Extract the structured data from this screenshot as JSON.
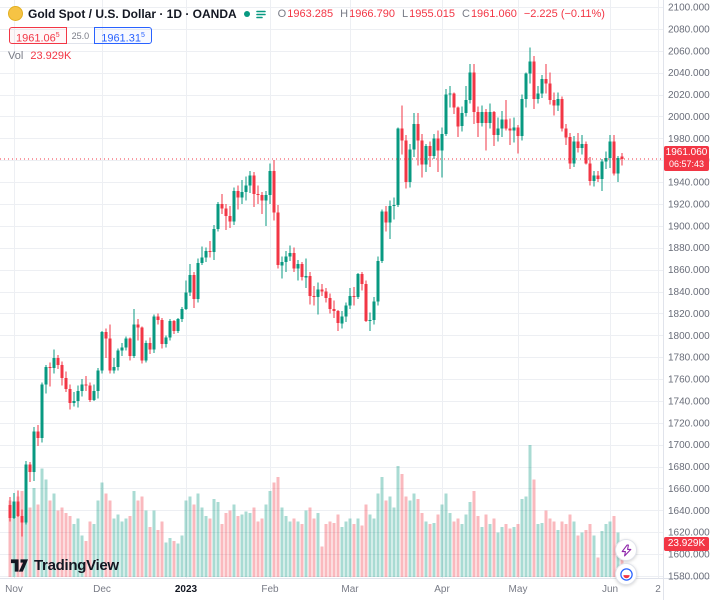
{
  "legend": {
    "title": "Gold Spot / U.S. Dollar · 1D · OANDA",
    "ohlc": [
      {
        "label": "O",
        "value": "1963.285"
      },
      {
        "label": "H",
        "value": "1966.790"
      },
      {
        "label": "L",
        "value": "1955.015"
      },
      {
        "label": "C",
        "value": "1961.060"
      }
    ],
    "change": "−2.225 (−0.11%)"
  },
  "quote_panel": {
    "bid": "1961.06",
    "bid_sup": "5",
    "spread": "25.0",
    "ask": "1961.31",
    "ask_sup": "5"
  },
  "volume_row": {
    "label": "Vol",
    "value": "23.929K"
  },
  "price_chip": {
    "price": "1961.060",
    "countdown": "06:57:43"
  },
  "volume_chip": {
    "value": "23.929K"
  },
  "logo": {
    "text": "TradingView"
  },
  "colors": {
    "accent_red": "#F23645",
    "accent_blue": "#2962FF",
    "accent_green": "#089981"
  },
  "chart_data": {
    "type": "candlestick+volume",
    "title": "Gold Spot / U.S. Dollar",
    "interval": "1D",
    "exchange": "OANDA",
    "last_price": 1961.06,
    "volume_unit": "K",
    "y_axis": {
      "min": 1580,
      "max": 2100,
      "step": 20,
      "decimals": 3
    },
    "x_ticks": [
      {
        "i": 1,
        "label": "Nov"
      },
      {
        "i": 23,
        "label": "Dec"
      },
      {
        "i": 44,
        "label": "2023",
        "year": true
      },
      {
        "i": 65,
        "label": "Feb"
      },
      {
        "i": 85,
        "label": "Mar"
      },
      {
        "i": 108,
        "label": "Apr"
      },
      {
        "i": 127,
        "label": "May"
      },
      {
        "i": 150,
        "label": "Jun"
      },
      {
        "i": 162,
        "label": "2"
      }
    ],
    "colors": {
      "up": "#089981",
      "down": "#F23645",
      "vol_up": "rgba(8,153,129,0.35)",
      "vol_down": "rgba(242,54,69,0.35)",
      "grid": "#EDEFF3",
      "last_price_line": "#F23645",
      "axis_border": "#E0E3EB"
    },
    "candles": [
      [
        1645,
        1652,
        1630,
        1633,
        55
      ],
      [
        1633,
        1656,
        1632,
        1648,
        48
      ],
      [
        1648,
        1658,
        1634,
        1635,
        58
      ],
      [
        1635,
        1641,
        1616,
        1629,
        62
      ],
      [
        1629,
        1685,
        1627,
        1682,
        75
      ],
      [
        1682,
        1684,
        1666,
        1675,
        50
      ],
      [
        1675,
        1716,
        1667,
        1712,
        64
      ],
      [
        1712,
        1718,
        1699,
        1706,
        52
      ],
      [
        1706,
        1757,
        1702,
        1755,
        78
      ],
      [
        1755,
        1773,
        1747,
        1771,
        70
      ],
      [
        1771,
        1775,
        1753,
        1770,
        55
      ],
      [
        1770,
        1787,
        1765,
        1779,
        60
      ],
      [
        1779,
        1782,
        1769,
        1773,
        48
      ],
      [
        1773,
        1776,
        1754,
        1761,
        50
      ],
      [
        1761,
        1767,
        1748,
        1751,
        46
      ],
      [
        1751,
        1755,
        1732,
        1738,
        44
      ],
      [
        1738,
        1748,
        1735,
        1740,
        38
      ],
      [
        1740,
        1754,
        1734,
        1749,
        42
      ],
      [
        1749,
        1760,
        1744,
        1755,
        30
      ],
      [
        1755,
        1763,
        1749,
        1754,
        26
      ],
      [
        1754,
        1757,
        1739,
        1741,
        40
      ],
      [
        1741,
        1755,
        1740,
        1749,
        38
      ],
      [
        1749,
        1770,
        1742,
        1768,
        55
      ],
      [
        1768,
        1804,
        1765,
        1803,
        68
      ],
      [
        1803,
        1806,
        1779,
        1797,
        60
      ],
      [
        1797,
        1810,
        1765,
        1768,
        55
      ],
      [
        1768,
        1779,
        1765,
        1771,
        42
      ],
      [
        1771,
        1788,
        1768,
        1786,
        45
      ],
      [
        1786,
        1793,
        1781,
        1789,
        40
      ],
      [
        1789,
        1799,
        1786,
        1797,
        42
      ],
      [
        1797,
        1798,
        1777,
        1781,
        44
      ],
      [
        1781,
        1824,
        1779,
        1810,
        62
      ],
      [
        1810,
        1815,
        1795,
        1807,
        55
      ],
      [
        1807,
        1808,
        1774,
        1777,
        58
      ],
      [
        1777,
        1795,
        1775,
        1793,
        48
      ],
      [
        1793,
        1798,
        1783,
        1787,
        36
      ],
      [
        1787,
        1819,
        1784,
        1817,
        48
      ],
      [
        1817,
        1820,
        1810,
        1814,
        34
      ],
      [
        1814,
        1816,
        1788,
        1792,
        40
      ],
      [
        1792,
        1800,
        1789,
        1798,
        25
      ],
      [
        1798,
        1815,
        1795,
        1813,
        28
      ],
      [
        1813,
        1814,
        1801,
        1804,
        26
      ],
      [
        1804,
        1816,
        1802,
        1815,
        24
      ],
      [
        1815,
        1826,
        1812,
        1824,
        30
      ],
      [
        1824,
        1850,
        1823,
        1839,
        55
      ],
      [
        1839,
        1865,
        1836,
        1855,
        58
      ],
      [
        1855,
        1858,
        1825,
        1833,
        52
      ],
      [
        1833,
        1870,
        1830,
        1866,
        60
      ],
      [
        1866,
        1881,
        1864,
        1871,
        50
      ],
      [
        1871,
        1880,
        1867,
        1877,
        44
      ],
      [
        1877,
        1886,
        1871,
        1876,
        42
      ],
      [
        1876,
        1901,
        1869,
        1897,
        56
      ],
      [
        1897,
        1922,
        1895,
        1920,
        54
      ],
      [
        1920,
        1929,
        1911,
        1916,
        38
      ],
      [
        1916,
        1920,
        1896,
        1909,
        46
      ],
      [
        1909,
        1918,
        1898,
        1904,
        48
      ],
      [
        1904,
        1935,
        1901,
        1932,
        52
      ],
      [
        1932,
        1937,
        1915,
        1926,
        44
      ],
      [
        1926,
        1942,
        1920,
        1931,
        45
      ],
      [
        1931,
        1945,
        1923,
        1937,
        47
      ],
      [
        1937,
        1950,
        1930,
        1946,
        46
      ],
      [
        1946,
        1949,
        1917,
        1929,
        50
      ],
      [
        1929,
        1937,
        1920,
        1928,
        40
      ],
      [
        1928,
        1931,
        1911,
        1923,
        42
      ],
      [
        1923,
        1932,
        1900,
        1928,
        52
      ],
      [
        1928,
        1957,
        1920,
        1950,
        62
      ],
      [
        1950,
        1960,
        1905,
        1912,
        68
      ],
      [
        1912,
        1919,
        1861,
        1864,
        72
      ],
      [
        1864,
        1872,
        1852,
        1867,
        50
      ],
      [
        1867,
        1877,
        1858,
        1872,
        44
      ],
      [
        1872,
        1882,
        1868,
        1875,
        40
      ],
      [
        1875,
        1880,
        1858,
        1861,
        42
      ],
      [
        1861,
        1869,
        1850,
        1865,
        40
      ],
      [
        1865,
        1867,
        1850,
        1853,
        38
      ],
      [
        1853,
        1870,
        1843,
        1854,
        48
      ],
      [
        1854,
        1858,
        1828,
        1836,
        50
      ],
      [
        1836,
        1845,
        1827,
        1835,
        42
      ],
      [
        1835,
        1848,
        1819,
        1842,
        46
      ],
      [
        1842,
        1847,
        1836,
        1840,
        22
      ],
      [
        1840,
        1843,
        1830,
        1834,
        38
      ],
      [
        1834,
        1838,
        1820,
        1824,
        40
      ],
      [
        1824,
        1832,
        1816,
        1822,
        39
      ],
      [
        1822,
        1823,
        1804,
        1811,
        45
      ],
      [
        1811,
        1822,
        1806,
        1817,
        36
      ],
      [
        1817,
        1830,
        1812,
        1827,
        40
      ],
      [
        1827,
        1843,
        1824,
        1836,
        42
      ],
      [
        1836,
        1844,
        1827,
        1835,
        38
      ],
      [
        1835,
        1857,
        1833,
        1856,
        42
      ],
      [
        1856,
        1858,
        1841,
        1847,
        37
      ],
      [
        1847,
        1850,
        1812,
        1813,
        52
      ],
      [
        1813,
        1821,
        1804,
        1814,
        45
      ],
      [
        1814,
        1835,
        1810,
        1831,
        42
      ],
      [
        1831,
        1872,
        1827,
        1868,
        60
      ],
      [
        1868,
        1915,
        1866,
        1913,
        72
      ],
      [
        1913,
        1918,
        1895,
        1903,
        55
      ],
      [
        1903,
        1923,
        1888,
        1918,
        58
      ],
      [
        1918,
        1926,
        1906,
        1919,
        50
      ],
      [
        1919,
        1990,
        1917,
        1989,
        80
      ],
      [
        1989,
        2010,
        1965,
        1978,
        74
      ],
      [
        1978,
        1983,
        1934,
        1940,
        58
      ],
      [
        1940,
        1975,
        1935,
        1970,
        55
      ],
      [
        1970,
        2003,
        1963,
        1993,
        60
      ],
      [
        1993,
        2003,
        1955,
        1978,
        56
      ],
      [
        1978,
        1984,
        1944,
        1956,
        46
      ],
      [
        1956,
        1975,
        1949,
        1973,
        40
      ],
      [
        1973,
        1977,
        1954,
        1964,
        38
      ],
      [
        1964,
        1984,
        1961,
        1980,
        39
      ],
      [
        1980,
        1987,
        1949,
        1969,
        45
      ],
      [
        1969,
        1990,
        1944,
        1984,
        52
      ],
      [
        1984,
        2025,
        1982,
        2020,
        60
      ],
      [
        2020,
        2028,
        2008,
        2021,
        46
      ],
      [
        2021,
        2022,
        2002,
        2008,
        40
      ],
      [
        2008,
        2009,
        1981,
        1991,
        42
      ],
      [
        1991,
        2009,
        1986,
        2003,
        38
      ],
      [
        2003,
        2028,
        2000,
        2015,
        45
      ],
      [
        2015,
        2048,
        2012,
        2040,
        54
      ],
      [
        2040,
        2048,
        1993,
        2004,
        62
      ],
      [
        2004,
        2009,
        1981,
        1994,
        44
      ],
      [
        1994,
        2010,
        1991,
        2004,
        36
      ],
      [
        2004,
        2007,
        1969,
        1994,
        45
      ],
      [
        1994,
        2012,
        1989,
        2004,
        38
      ],
      [
        2004,
        2005,
        1973,
        1983,
        42
      ],
      [
        1983,
        1999,
        1977,
        1989,
        32
      ],
      [
        1989,
        2005,
        1981,
        1997,
        36
      ],
      [
        1997,
        2015,
        1987,
        1989,
        38
      ],
      [
        1989,
        1998,
        1974,
        1987,
        35
      ],
      [
        1987,
        1999,
        1976,
        1990,
        36
      ],
      [
        1990,
        1992,
        1966,
        1982,
        38
      ],
      [
        1982,
        2020,
        1978,
        2016,
        56
      ],
      [
        2016,
        2040,
        2008,
        2039,
        58
      ],
      [
        2039,
        2063,
        2030,
        2050,
        95
      ],
      [
        2050,
        2055,
        2007,
        2016,
        70
      ],
      [
        2016,
        2028,
        2012,
        2021,
        38
      ],
      [
        2021,
        2038,
        2017,
        2034,
        39
      ],
      [
        2034,
        2048,
        2021,
        2030,
        48
      ],
      [
        2030,
        2040,
        2011,
        2015,
        42
      ],
      [
        2015,
        2022,
        2001,
        2010,
        40
      ],
      [
        2010,
        2022,
        2005,
        2016,
        34
      ],
      [
        2016,
        2018,
        1986,
        1989,
        40
      ],
      [
        1989,
        1993,
        1974,
        1981,
        38
      ],
      [
        1981,
        1985,
        1952,
        1957,
        45
      ],
      [
        1957,
        1982,
        1954,
        1977,
        40
      ],
      [
        1977,
        1985,
        1967,
        1971,
        30
      ],
      [
        1971,
        1983,
        1965,
        1975,
        32
      ],
      [
        1975,
        1977,
        1956,
        1957,
        34
      ],
      [
        1957,
        1963,
        1937,
        1941,
        38
      ],
      [
        1941,
        1950,
        1936,
        1946,
        30
      ],
      [
        1946,
        1950,
        1940,
        1943,
        14
      ],
      [
        1943,
        1961,
        1932,
        1959,
        33
      ],
      [
        1959,
        1968,
        1952,
        1962,
        38
      ],
      [
        1962,
        1983,
        1953,
        1977,
        40
      ],
      [
        1977,
        1983,
        1946,
        1948,
        44
      ],
      [
        1948,
        1964,
        1940,
        1962,
        32
      ],
      [
        1963.285,
        1966.79,
        1955.015,
        1961.06,
        23.929
      ]
    ]
  }
}
